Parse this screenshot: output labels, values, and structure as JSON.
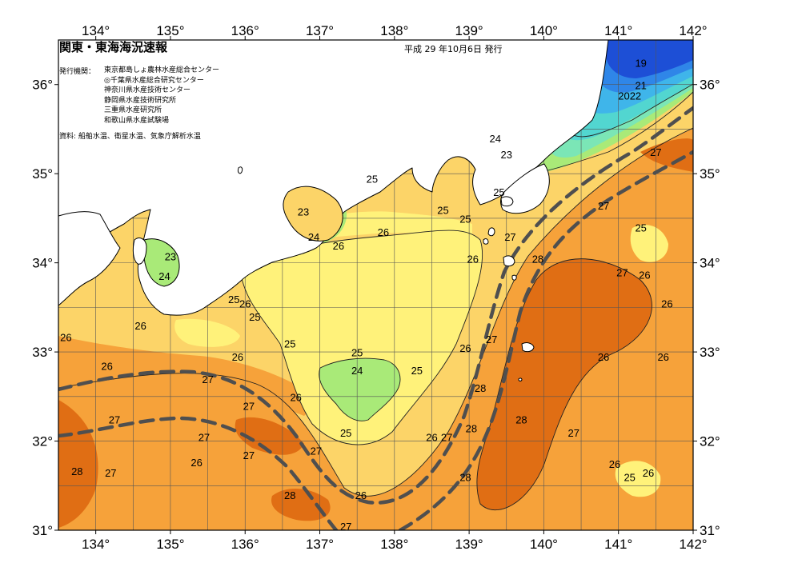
{
  "title": "関東・東海海況速報",
  "issue_date": "平成 29 年10月6日 発行",
  "issuer_label": "発行機関：",
  "issuers": [
    "東京都島しょ農林水産総合センター",
    "◎千葉県水産総合研究センター",
    "神奈川県水産技術センター",
    "静岡県水産技術研究所",
    "三重県水産研究所",
    "和歌山県水産試験場"
  ],
  "source": "資料: 船舶水温、衛星水温、気象庁解析水温",
  "axes": {
    "lon_labels": [
      "134°",
      "135°",
      "136°",
      "137°",
      "138°",
      "139°",
      "140°",
      "141°",
      "142°"
    ],
    "lon_values": [
      134,
      135,
      136,
      137,
      138,
      139,
      140,
      141,
      142
    ],
    "lat_labels": [
      "36°",
      "35°",
      "34°",
      "33°",
      "32°",
      "31°"
    ],
    "lat_values": [
      36,
      35,
      34,
      33,
      32,
      31
    ],
    "lon_range": [
      133.5,
      142
    ],
    "lat_range": [
      31,
      36.5
    ]
  },
  "colors": {
    "t19": "#1d4fd6",
    "t20": "#2f86e8",
    "t21": "#3fb5ea",
    "t22": "#52d6d0",
    "t23": "#7be6b6",
    "t24": "#a9ea78",
    "t25": "#fff27a",
    "t26": "#fcd468",
    "t27": "#f6a23a",
    "t28": "#e06e14",
    "land": "#ffffff",
    "kuroshio": "#4f4f4f"
  },
  "temperature_labels": [
    {
      "text": "19",
      "lon": 141.3,
      "lat": 36.2
    },
    {
      "text": "21",
      "lon": 141.3,
      "lat": 35.95
    },
    {
      "text": "2022",
      "lon": 141.15,
      "lat": 35.83
    },
    {
      "text": "24",
      "lon": 139.35,
      "lat": 35.35
    },
    {
      "text": "23",
      "lon": 139.5,
      "lat": 35.17
    },
    {
      "text": "27",
      "lon": 141.5,
      "lat": 35.2
    },
    {
      "text": "25",
      "lon": 137.7,
      "lat": 34.9
    },
    {
      "text": "23",
      "lon": 136.78,
      "lat": 34.53
    },
    {
      "text": "24",
      "lon": 136.92,
      "lat": 34.25
    },
    {
      "text": "26",
      "lon": 137.25,
      "lat": 34.15
    },
    {
      "text": "26",
      "lon": 137.85,
      "lat": 34.3
    },
    {
      "text": "25",
      "lon": 138.65,
      "lat": 34.55
    },
    {
      "text": "25",
      "lon": 138.95,
      "lat": 34.45
    },
    {
      "text": "25",
      "lon": 139.4,
      "lat": 34.75
    },
    {
      "text": "27",
      "lon": 139.55,
      "lat": 34.25
    },
    {
      "text": "26",
      "lon": 139.05,
      "lat": 34.0
    },
    {
      "text": "28",
      "lon": 139.92,
      "lat": 34.0
    },
    {
      "text": "27",
      "lon": 140.8,
      "lat": 34.6
    },
    {
      "text": "25",
      "lon": 141.3,
      "lat": 34.35
    },
    {
      "text": "27",
      "lon": 141.05,
      "lat": 33.85
    },
    {
      "text": "26",
      "lon": 141.35,
      "lat": 33.82
    },
    {
      "text": "26",
      "lon": 141.65,
      "lat": 33.5
    },
    {
      "text": "23",
      "lon": 135.0,
      "lat": 34.03
    },
    {
      "text": "24",
      "lon": 134.92,
      "lat": 33.81
    },
    {
      "text": "25",
      "lon": 135.85,
      "lat": 33.55
    },
    {
      "text": "26",
      "lon": 136.0,
      "lat": 33.5
    },
    {
      "text": "25",
      "lon": 136.13,
      "lat": 33.35
    },
    {
      "text": "26",
      "lon": 134.6,
      "lat": 33.25
    },
    {
      "text": "26",
      "lon": 133.6,
      "lat": 33.12
    },
    {
      "text": "25",
      "lon": 136.6,
      "lat": 33.05
    },
    {
      "text": "25",
      "lon": 137.5,
      "lat": 32.95
    },
    {
      "text": "24",
      "lon": 137.5,
      "lat": 32.75
    },
    {
      "text": "25",
      "lon": 138.3,
      "lat": 32.75
    },
    {
      "text": "26",
      "lon": 138.95,
      "lat": 33.0
    },
    {
      "text": "27",
      "lon": 139.3,
      "lat": 33.1
    },
    {
      "text": "26",
      "lon": 140.8,
      "lat": 32.9
    },
    {
      "text": "26",
      "lon": 141.6,
      "lat": 32.9
    },
    {
      "text": "26",
      "lon": 134.15,
      "lat": 32.8
    },
    {
      "text": "27",
      "lon": 135.5,
      "lat": 32.65
    },
    {
      "text": "26",
      "lon": 135.9,
      "lat": 32.9
    },
    {
      "text": "27",
      "lon": 136.05,
      "lat": 32.35
    },
    {
      "text": "26",
      "lon": 136.68,
      "lat": 32.45
    },
    {
      "text": "27",
      "lon": 134.25,
      "lat": 32.2
    },
    {
      "text": "28",
      "lon": 139.15,
      "lat": 32.55
    },
    {
      "text": "28",
      "lon": 139.7,
      "lat": 32.2
    },
    {
      "text": "28",
      "lon": 139.03,
      "lat": 32.1
    },
    {
      "text": "27",
      "lon": 140.4,
      "lat": 32.05
    },
    {
      "text": "25",
      "lon": 137.35,
      "lat": 32.05
    },
    {
      "text": "26",
      "lon": 138.5,
      "lat": 32.0
    },
    {
      "text": "27",
      "lon": 138.7,
      "lat": 32.0
    },
    {
      "text": "27",
      "lon": 135.45,
      "lat": 32.0
    },
    {
      "text": "27",
      "lon": 136.05,
      "lat": 31.8
    },
    {
      "text": "27",
      "lon": 136.95,
      "lat": 31.85
    },
    {
      "text": "26",
      "lon": 135.35,
      "lat": 31.72
    },
    {
      "text": "28",
      "lon": 133.75,
      "lat": 31.62
    },
    {
      "text": "27",
      "lon": 134.2,
      "lat": 31.6
    },
    {
      "text": "28",
      "lon": 138.95,
      "lat": 31.55
    },
    {
      "text": "26",
      "lon": 140.95,
      "lat": 31.7
    },
    {
      "text": "25",
      "lon": 141.15,
      "lat": 31.55
    },
    {
      "text": "26",
      "lon": 141.4,
      "lat": 31.6
    },
    {
      "text": "28",
      "lon": 136.6,
      "lat": 31.35
    },
    {
      "text": "26",
      "lon": 137.55,
      "lat": 31.35
    },
    {
      "text": "27",
      "lon": 137.35,
      "lat": 31.0
    }
  ]
}
